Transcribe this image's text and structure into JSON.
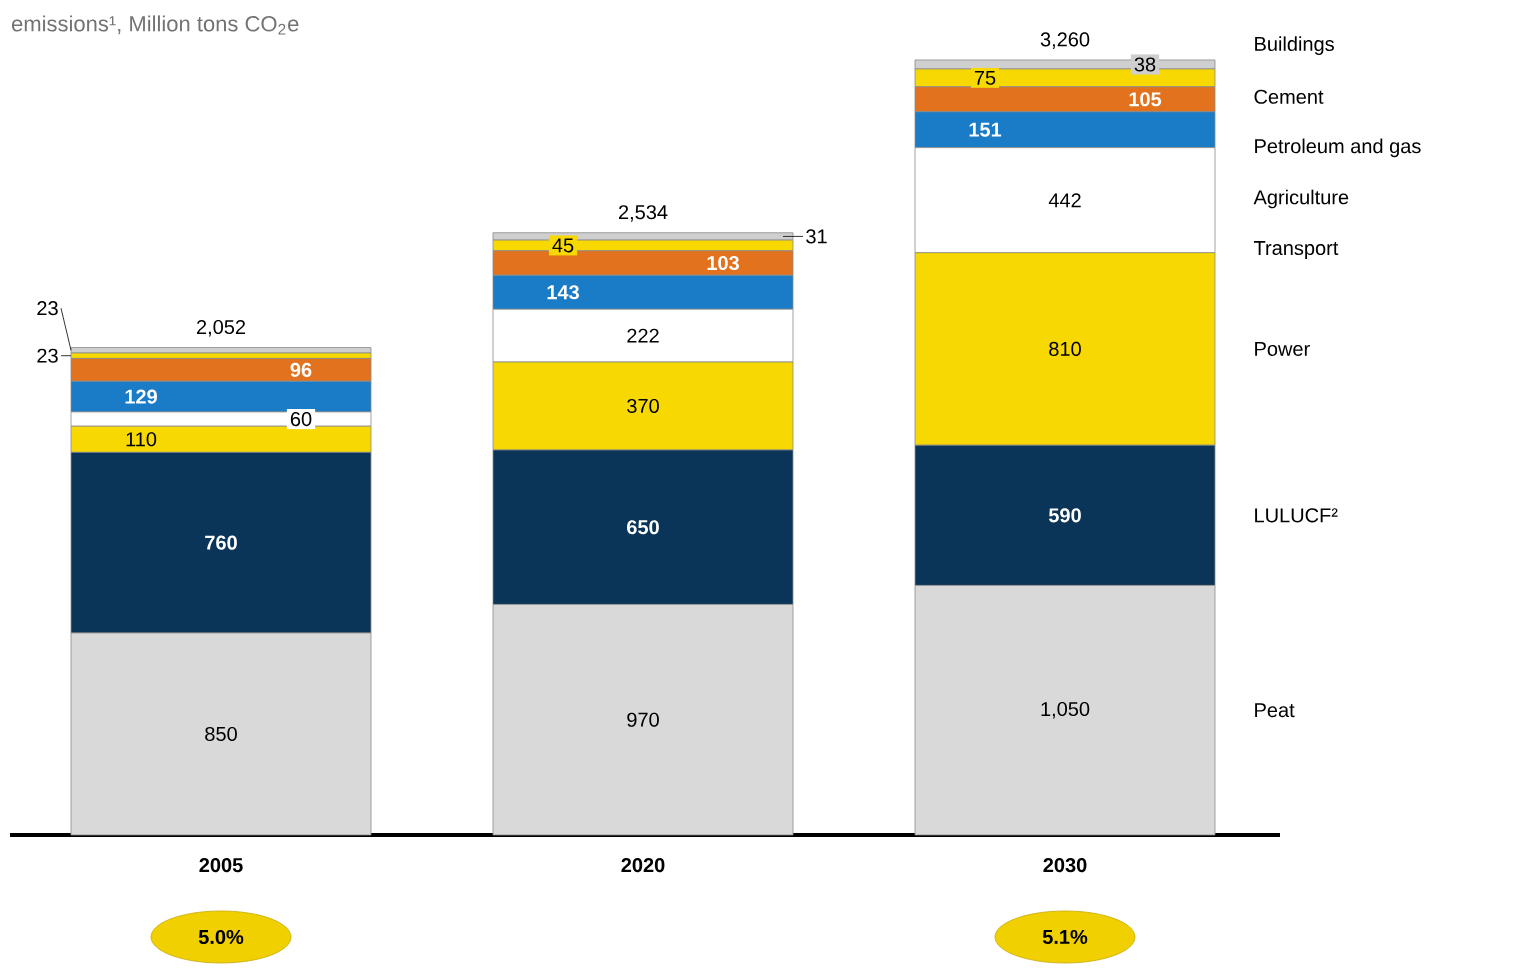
{
  "chart_data": {
    "type": "bar",
    "stacked": true,
    "tick_labels": "x",
    "title": "emissions¹, Million tons CO$_{2}$e",
    "categories": [
      "2005",
      "2020",
      "2030"
    ],
    "series": [
      {
        "name": "Peat",
        "color": "#d9d9d9",
        "values": [
          850,
          970,
          1050
        ],
        "value_labels": [
          "850",
          "970",
          "1,050"
        ]
      },
      {
        "name": "LULUCF²",
        "color": "#0b3558",
        "values": [
          760,
          650,
          590
        ],
        "value_labels": [
          "760",
          "650",
          "590"
        ]
      },
      {
        "name": "Power",
        "color": "#f7d800",
        "values": [
          110,
          370,
          810
        ],
        "value_labels": [
          "110",
          "370",
          "810"
        ]
      },
      {
        "name": "Transport",
        "color": "#ffffff",
        "values": [
          60,
          222,
          442
        ],
        "value_labels": [
          "60",
          "222",
          "442"
        ]
      },
      {
        "name": "Agriculture",
        "color": "#1a7cc6",
        "values": [
          129,
          143,
          151
        ],
        "value_labels": [
          "129",
          "143",
          "151"
        ]
      },
      {
        "name": "Petroleum and gas",
        "color": "#e2721e",
        "values": [
          96,
          103,
          105
        ],
        "value_labels": [
          "96",
          "103",
          "105"
        ]
      },
      {
        "name": "Cement",
        "color": "#f7d800",
        "values": [
          23,
          45,
          75
        ],
        "value_labels": [
          "23",
          "45",
          "75"
        ]
      },
      {
        "name": "Buildings",
        "color": "#cfcfcf",
        "values": [
          23,
          31,
          38
        ],
        "value_labels": [
          "23",
          "31",
          "38"
        ]
      }
    ],
    "totals": [
      "2,052",
      "2,534",
      "3,260"
    ],
    "annotations": [
      "5.0%",
      "5.1%"
    ]
  }
}
